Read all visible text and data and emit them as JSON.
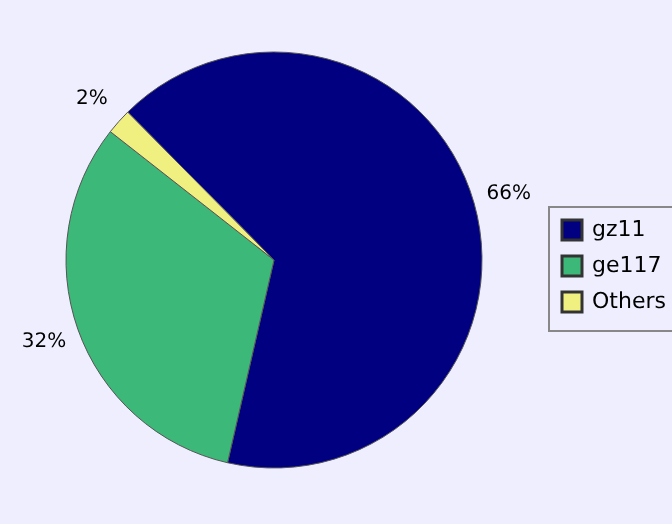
{
  "chart_data": {
    "type": "pie",
    "categories": [
      "gz11",
      "ge117",
      "Others"
    ],
    "values": [
      66,
      32,
      2
    ],
    "colors": [
      "#000080",
      "#3cb878",
      "#f0f080"
    ],
    "value_labels": [
      "66%",
      "32%",
      "2%"
    ],
    "legend": "right"
  }
}
